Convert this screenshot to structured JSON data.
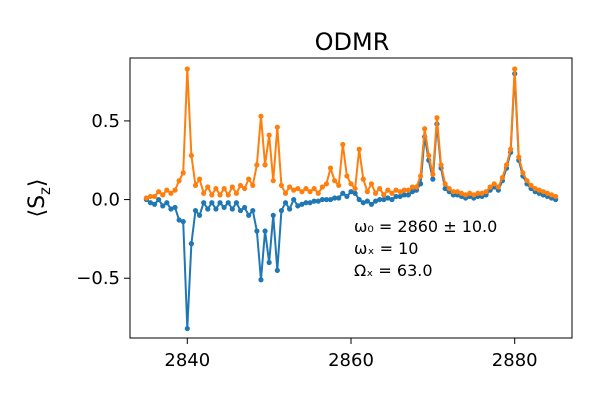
{
  "chart_data": {
    "type": "line",
    "title": "ODMR",
    "xlabel": "",
    "ylabel": "⟨S_z⟩",
    "xlim": [
      2833,
      2887
    ],
    "ylim": [
      -0.88,
      0.9
    ],
    "x_ticks": [
      2840,
      2860,
      2880
    ],
    "y_ticks": [
      -0.5,
      0.0,
      0.5
    ],
    "x_tick_labels": [
      "2840",
      "2860",
      "2880"
    ],
    "y_tick_labels": [
      "−0.5",
      "0.0",
      "0.5"
    ],
    "grid": false,
    "legend": "none",
    "annotations": [
      "ω₀ = 2860 ± 10.0",
      "ωₓ = 10",
      "Ωₓ = 63.0"
    ],
    "x": [
      2835.0,
      2835.5,
      2836.0,
      2836.5,
      2837.0,
      2837.5,
      2838.0,
      2838.5,
      2839.0,
      2839.5,
      2840.0,
      2840.5,
      2841.0,
      2841.5,
      2842.0,
      2842.5,
      2843.0,
      2843.5,
      2844.0,
      2844.5,
      2845.0,
      2845.5,
      2846.0,
      2846.5,
      2847.0,
      2847.5,
      2848.0,
      2848.5,
      2849.0,
      2849.5,
      2850.0,
      2850.5,
      2851.0,
      2851.5,
      2852.0,
      2852.5,
      2853.0,
      2853.5,
      2854.0,
      2854.5,
      2855.0,
      2855.5,
      2856.0,
      2856.5,
      2857.0,
      2857.5,
      2858.0,
      2858.5,
      2859.0,
      2859.5,
      2860.0,
      2860.5,
      2861.0,
      2861.5,
      2862.0,
      2862.5,
      2863.0,
      2863.5,
      2864.0,
      2864.5,
      2865.0,
      2865.5,
      2866.0,
      2866.5,
      2867.0,
      2867.5,
      2868.0,
      2868.5,
      2869.0,
      2869.5,
      2870.0,
      2870.5,
      2871.0,
      2871.5,
      2872.0,
      2872.5,
      2873.0,
      2873.5,
      2874.0,
      2874.5,
      2875.0,
      2875.5,
      2876.0,
      2876.5,
      2877.0,
      2877.5,
      2878.0,
      2878.5,
      2879.0,
      2879.5,
      2880.0,
      2880.5,
      2881.0,
      2881.5,
      2882.0,
      2882.5,
      2883.0,
      2883.5,
      2884.0,
      2884.5,
      2885.0
    ],
    "series": [
      {
        "color": "#1f77b4",
        "values": [
          0.0,
          -0.02,
          -0.03,
          0.0,
          -0.04,
          -0.02,
          -0.06,
          -0.05,
          -0.13,
          -0.14,
          -0.82,
          -0.28,
          -0.07,
          -0.1,
          -0.02,
          -0.06,
          -0.02,
          -0.06,
          -0.02,
          -0.05,
          -0.02,
          -0.06,
          -0.02,
          -0.07,
          -0.05,
          -0.1,
          -0.07,
          -0.2,
          -0.51,
          -0.2,
          -0.4,
          -0.1,
          -0.45,
          -0.07,
          -0.02,
          -0.06,
          0.0,
          -0.04,
          -0.03,
          -0.02,
          -0.02,
          -0.01,
          -0.01,
          0.0,
          0.0,
          0.0,
          0.01,
          0.01,
          0.04,
          0.02,
          0.05,
          0.04,
          0.0,
          -0.02,
          -0.01,
          -0.03,
          -0.01,
          0.0,
          0.0,
          0.01,
          0.0,
          0.02,
          0.02,
          0.03,
          0.03,
          0.05,
          0.06,
          0.1,
          0.4,
          0.25,
          0.13,
          0.48,
          0.2,
          0.07,
          0.05,
          0.03,
          0.03,
          0.02,
          0.01,
          0.02,
          0.01,
          0.02,
          0.02,
          0.03,
          0.06,
          0.08,
          0.06,
          0.12,
          0.2,
          0.3,
          0.8,
          0.25,
          0.15,
          0.1,
          0.07,
          0.05,
          0.04,
          0.03,
          0.02,
          0.01,
          0.0
        ]
      },
      {
        "color": "#ff7f0e",
        "values": [
          0.01,
          0.02,
          0.02,
          0.05,
          0.03,
          0.06,
          0.04,
          0.06,
          0.12,
          0.17,
          0.83,
          0.28,
          0.09,
          0.13,
          0.04,
          0.08,
          0.03,
          0.07,
          0.03,
          0.07,
          0.03,
          0.08,
          0.04,
          0.09,
          0.07,
          0.13,
          0.09,
          0.22,
          0.53,
          0.22,
          0.41,
          0.12,
          0.46,
          0.09,
          0.04,
          0.08,
          0.06,
          0.07,
          0.05,
          0.07,
          0.05,
          0.07,
          0.04,
          0.08,
          0.1,
          0.2,
          0.12,
          0.09,
          0.35,
          0.15,
          0.1,
          0.07,
          0.32,
          0.13,
          0.05,
          0.1,
          0.04,
          0.07,
          0.03,
          0.06,
          0.04,
          0.06,
          0.05,
          0.06,
          0.06,
          0.08,
          0.08,
          0.15,
          0.45,
          0.28,
          0.16,
          0.52,
          0.22,
          0.1,
          0.07,
          0.05,
          0.05,
          0.04,
          0.03,
          0.04,
          0.03,
          0.04,
          0.04,
          0.05,
          0.08,
          0.1,
          0.08,
          0.14,
          0.22,
          0.32,
          0.83,
          0.27,
          0.17,
          0.12,
          0.09,
          0.07,
          0.06,
          0.05,
          0.04,
          0.03,
          0.02
        ]
      }
    ]
  }
}
